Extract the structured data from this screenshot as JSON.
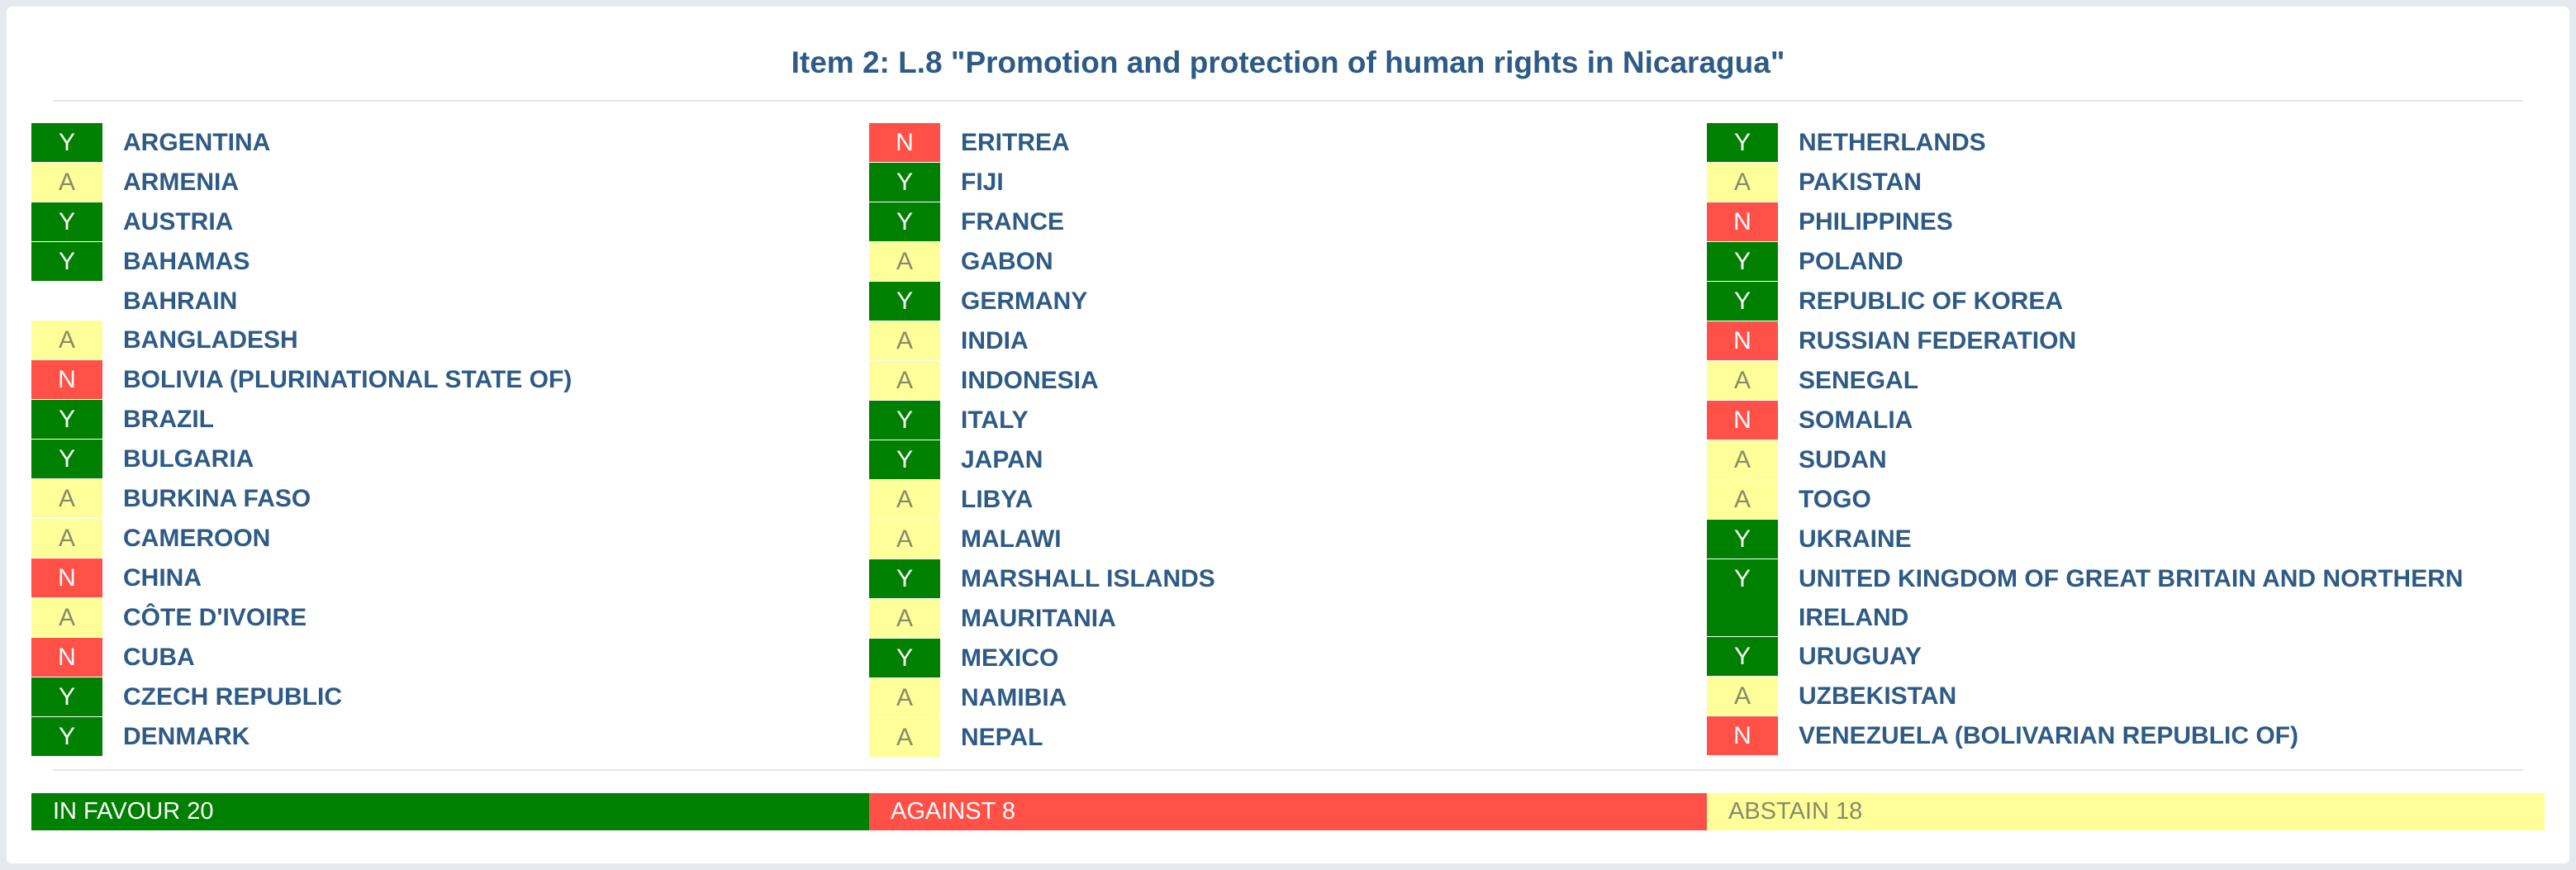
{
  "title": "Item 2: L.8 \"Promotion and protection of human rights in Nicaragua\"",
  "colors": {
    "yes": "#008000",
    "no": "#ff5148",
    "abstain": "#ffff99",
    "text": "#2e5b86"
  },
  "columns": [
    [
      {
        "vote": "Y",
        "country": "ARGENTINA"
      },
      {
        "vote": "A",
        "country": "ARMENIA"
      },
      {
        "vote": "Y",
        "country": "AUSTRIA"
      },
      {
        "vote": "Y",
        "country": "BAHAMAS"
      },
      {
        "vote": "",
        "country": "BAHRAIN"
      },
      {
        "vote": "A",
        "country": "BANGLADESH"
      },
      {
        "vote": "N",
        "country": "BOLIVIA (PLURINATIONAL STATE OF)"
      },
      {
        "vote": "Y",
        "country": "BRAZIL"
      },
      {
        "vote": "Y",
        "country": "BULGARIA"
      },
      {
        "vote": "A",
        "country": "BURKINA FASO"
      },
      {
        "vote": "A",
        "country": "CAMEROON"
      },
      {
        "vote": "N",
        "country": "CHINA"
      },
      {
        "vote": "A",
        "country": "CÔTE D'IVOIRE"
      },
      {
        "vote": "N",
        "country": "CUBA"
      },
      {
        "vote": "Y",
        "country": "CZECH REPUBLIC"
      },
      {
        "vote": "Y",
        "country": "DENMARK"
      }
    ],
    [
      {
        "vote": "N",
        "country": "ERITREA"
      },
      {
        "vote": "Y",
        "country": "FIJI"
      },
      {
        "vote": "Y",
        "country": "FRANCE"
      },
      {
        "vote": "A",
        "country": "GABON"
      },
      {
        "vote": "Y",
        "country": "GERMANY"
      },
      {
        "vote": "A",
        "country": "INDIA"
      },
      {
        "vote": "A",
        "country": "INDONESIA"
      },
      {
        "vote": "Y",
        "country": "ITALY"
      },
      {
        "vote": "Y",
        "country": "JAPAN"
      },
      {
        "vote": "A",
        "country": "LIBYA"
      },
      {
        "vote": "A",
        "country": "MALAWI"
      },
      {
        "vote": "Y",
        "country": "MARSHALL ISLANDS"
      },
      {
        "vote": "A",
        "country": "MAURITANIA"
      },
      {
        "vote": "Y",
        "country": "MEXICO"
      },
      {
        "vote": "A",
        "country": "NAMIBIA"
      },
      {
        "vote": "A",
        "country": "NEPAL"
      }
    ],
    [
      {
        "vote": "Y",
        "country": "NETHERLANDS"
      },
      {
        "vote": "A",
        "country": "PAKISTAN"
      },
      {
        "vote": "N",
        "country": "PHILIPPINES"
      },
      {
        "vote": "Y",
        "country": "POLAND"
      },
      {
        "vote": "Y",
        "country": "REPUBLIC OF KOREA"
      },
      {
        "vote": "N",
        "country": "RUSSIAN FEDERATION"
      },
      {
        "vote": "A",
        "country": "SENEGAL"
      },
      {
        "vote": "N",
        "country": "SOMALIA"
      },
      {
        "vote": "A",
        "country": "SUDAN"
      },
      {
        "vote": "A",
        "country": "TOGO"
      },
      {
        "vote": "Y",
        "country": "UKRAINE"
      },
      {
        "vote": "Y",
        "country": "UNITED KINGDOM OF GREAT BRITAIN AND NORTHERN IRELAND"
      },
      {
        "vote": "Y",
        "country": "URUGUAY"
      },
      {
        "vote": "A",
        "country": "UZBEKISTAN"
      },
      {
        "vote": "N",
        "country": "VENEZUELA (BOLIVARIAN REPUBLIC OF)"
      }
    ]
  ],
  "tally": {
    "favour": "IN FAVOUR 20",
    "against": "AGAINST 8",
    "abstain": "ABSTAIN 18"
  }
}
